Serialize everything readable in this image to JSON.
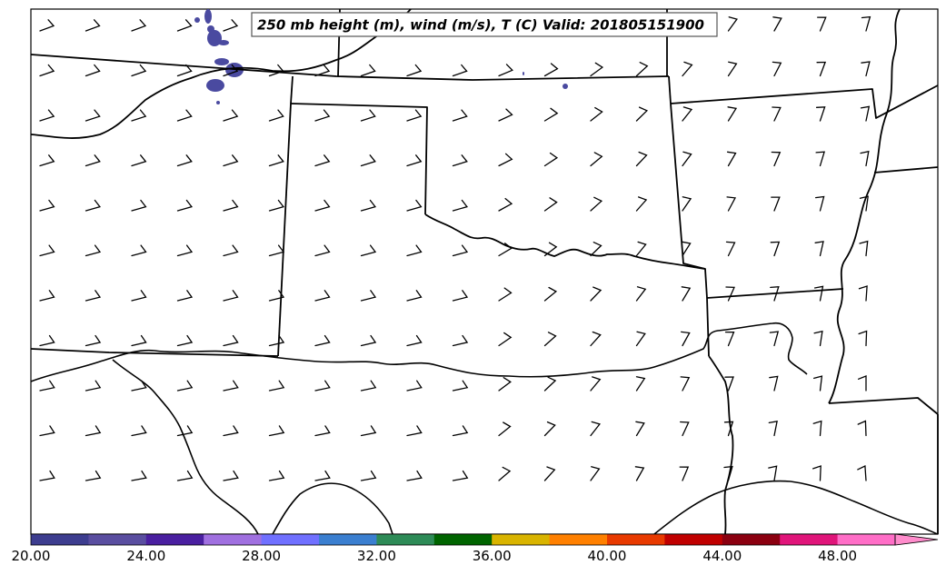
{
  "title": "250 mb height (m), wind (m/s), T (C) Valid: 201805151900",
  "colorbar": {
    "colors": [
      "#3d3d8f",
      "#5a4ea0",
      "#4a1fa0",
      "#a070e0",
      "#7070ff",
      "#3b7fd0",
      "#2e8b57",
      "#006400",
      "#d9b400",
      "#ff8000",
      "#e83a00",
      "#c00000",
      "#8b0010",
      "#e0157a",
      "#ff6ec7"
    ],
    "tick_labels": [
      "20.00",
      "24.00",
      "28.00",
      "32.00",
      "36.00",
      "40.00",
      "44.00",
      "48.00"
    ],
    "extend_color": "#ff8ccc"
  },
  "colors": {
    "temperature_patch": "#4a4aa0",
    "boundary": "#000000"
  }
}
